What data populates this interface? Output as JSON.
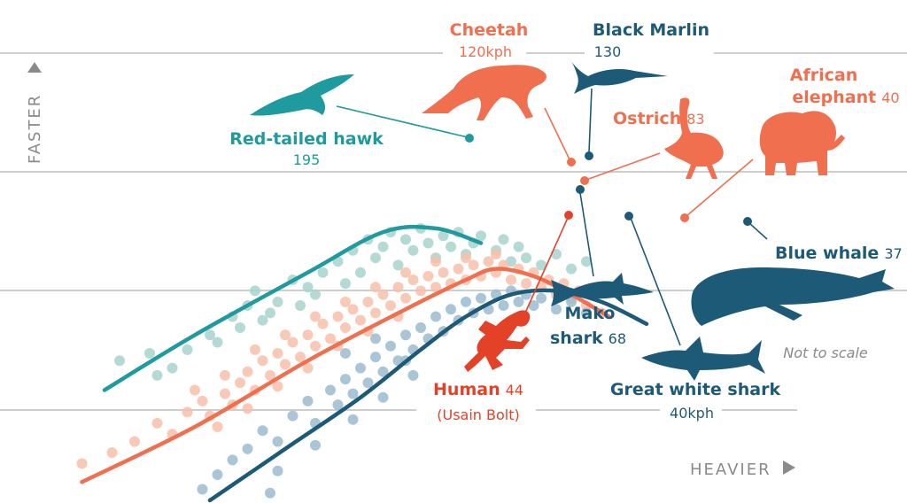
{
  "colors": {
    "birds": "#1f9a9e",
    "land_mammals": "#ef6f4f",
    "land_mammals_light": "#f8bfaa",
    "sea": "#1d5a78",
    "sea_light": "#9bbccf",
    "birds_light": "#a8d3cf",
    "human": "#e34228",
    "gridline": "#bdbdbd",
    "axis_text": "#8a8a8a"
  },
  "axes": {
    "y_label": "FASTER",
    "x_label": "HEAVIER",
    "y_arrow_icon": "triangle-up-icon",
    "x_arrow_icon": "triangle-right-icon"
  },
  "footnote": "Not to scale",
  "chart_data": {
    "type": "scatter",
    "series": [
      {
        "group": "birds",
        "curve": [
          [
            0.08,
            0.7
          ],
          [
            0.2,
            0.55
          ],
          [
            0.35,
            0.38
          ],
          [
            0.45,
            0.27
          ],
          [
            0.52,
            0.26
          ],
          [
            0.58,
            0.3
          ]
        ],
        "points": [
          [
            0.1,
            0.62
          ],
          [
            0.14,
            0.6
          ],
          [
            0.15,
            0.66
          ],
          [
            0.17,
            0.64
          ],
          [
            0.19,
            0.59
          ],
          [
            0.22,
            0.55
          ],
          [
            0.25,
            0.5
          ],
          [
            0.27,
            0.47
          ],
          [
            0.28,
            0.43
          ],
          [
            0.31,
            0.46
          ],
          [
            0.33,
            0.4
          ],
          [
            0.35,
            0.42
          ],
          [
            0.37,
            0.38
          ],
          [
            0.39,
            0.35
          ],
          [
            0.4,
            0.41
          ],
          [
            0.41,
            0.32
          ],
          [
            0.42,
            0.38
          ],
          [
            0.43,
            0.29
          ],
          [
            0.44,
            0.34
          ],
          [
            0.45,
            0.31
          ],
          [
            0.46,
            0.27
          ],
          [
            0.47,
            0.36
          ],
          [
            0.48,
            0.29
          ],
          [
            0.49,
            0.32
          ],
          [
            0.5,
            0.26
          ],
          [
            0.51,
            0.3
          ],
          [
            0.52,
            0.34
          ],
          [
            0.53,
            0.28
          ],
          [
            0.54,
            0.31
          ],
          [
            0.55,
            0.27
          ],
          [
            0.56,
            0.33
          ],
          [
            0.57,
            0.3
          ],
          [
            0.58,
            0.28
          ],
          [
            0.6,
            0.32
          ],
          [
            0.61,
            0.29
          ],
          [
            0.62,
            0.35
          ],
          [
            0.63,
            0.31
          ],
          [
            0.64,
            0.34
          ],
          [
            0.66,
            0.36
          ],
          [
            0.68,
            0.33
          ],
          [
            0.7,
            0.37
          ],
          [
            0.72,
            0.35
          ],
          [
            0.26,
            0.53
          ],
          [
            0.3,
            0.49
          ],
          [
            0.36,
            0.44
          ],
          [
            0.23,
            0.57
          ],
          [
            0.29,
            0.51
          ],
          [
            0.34,
            0.47
          ]
        ]
      },
      {
        "group": "land_mammals",
        "curve": [
          [
            0.05,
            0.95
          ],
          [
            0.2,
            0.8
          ],
          [
            0.35,
            0.62
          ],
          [
            0.48,
            0.48
          ],
          [
            0.56,
            0.4
          ],
          [
            0.6,
            0.37
          ],
          [
            0.65,
            0.39
          ],
          [
            0.7,
            0.44
          ],
          [
            0.75,
            0.5
          ]
        ],
        "points": [
          [
            0.05,
            0.9
          ],
          [
            0.09,
            0.87
          ],
          [
            0.12,
            0.84
          ],
          [
            0.15,
            0.79
          ],
          [
            0.17,
            0.82
          ],
          [
            0.19,
            0.76
          ],
          [
            0.21,
            0.73
          ],
          [
            0.22,
            0.77
          ],
          [
            0.24,
            0.71
          ],
          [
            0.25,
            0.74
          ],
          [
            0.26,
            0.68
          ],
          [
            0.27,
            0.65
          ],
          [
            0.28,
            0.7
          ],
          [
            0.29,
            0.62
          ],
          [
            0.3,
            0.66
          ],
          [
            0.31,
            0.6
          ],
          [
            0.32,
            0.63
          ],
          [
            0.33,
            0.57
          ],
          [
            0.34,
            0.61
          ],
          [
            0.35,
            0.55
          ],
          [
            0.36,
            0.58
          ],
          [
            0.37,
            0.52
          ],
          [
            0.38,
            0.56
          ],
          [
            0.39,
            0.5
          ],
          [
            0.4,
            0.53
          ],
          [
            0.41,
            0.48
          ],
          [
            0.42,
            0.51
          ],
          [
            0.43,
            0.46
          ],
          [
            0.44,
            0.49
          ],
          [
            0.45,
            0.44
          ],
          [
            0.46,
            0.47
          ],
          [
            0.47,
            0.42
          ],
          [
            0.48,
            0.45
          ],
          [
            0.49,
            0.4
          ],
          [
            0.5,
            0.43
          ],
          [
            0.51,
            0.39
          ],
          [
            0.52,
            0.42
          ],
          [
            0.53,
            0.38
          ],
          [
            0.54,
            0.41
          ],
          [
            0.55,
            0.37
          ],
          [
            0.56,
            0.4
          ],
          [
            0.57,
            0.36
          ],
          [
            0.58,
            0.39
          ],
          [
            0.59,
            0.35
          ],
          [
            0.6,
            0.38
          ],
          [
            0.61,
            0.36
          ],
          [
            0.62,
            0.4
          ],
          [
            0.63,
            0.37
          ],
          [
            0.64,
            0.41
          ],
          [
            0.65,
            0.38
          ],
          [
            0.66,
            0.42
          ],
          [
            0.67,
            0.4
          ],
          [
            0.68,
            0.44
          ],
          [
            0.69,
            0.41
          ],
          [
            0.7,
            0.45
          ],
          [
            0.71,
            0.43
          ],
          [
            0.72,
            0.47
          ],
          [
            0.73,
            0.44
          ],
          [
            0.74,
            0.49
          ],
          [
            0.23,
            0.8
          ],
          [
            0.27,
            0.75
          ],
          [
            0.31,
            0.69
          ],
          [
            0.35,
            0.64
          ],
          [
            0.39,
            0.58
          ],
          [
            0.43,
            0.54
          ],
          [
            0.47,
            0.5
          ],
          [
            0.2,
            0.7
          ],
          [
            0.24,
            0.66
          ],
          [
            0.28,
            0.59
          ],
          [
            0.32,
            0.55
          ],
          [
            0.36,
            0.5
          ],
          [
            0.4,
            0.46
          ],
          [
            0.44,
            0.42
          ],
          [
            0.48,
            0.38
          ],
          [
            0.52,
            0.35
          ],
          [
            0.56,
            0.34
          ],
          [
            0.6,
            0.33
          ]
        ]
      },
      {
        "group": "sea",
        "curve": [
          [
            0.22,
            1.0
          ],
          [
            0.32,
            0.86
          ],
          [
            0.42,
            0.72
          ],
          [
            0.5,
            0.59
          ],
          [
            0.56,
            0.5
          ],
          [
            0.62,
            0.44
          ],
          [
            0.68,
            0.43
          ],
          [
            0.74,
            0.46
          ],
          [
            0.8,
            0.52
          ]
        ],
        "points": [
          [
            0.21,
            0.97
          ],
          [
            0.23,
            0.93
          ],
          [
            0.25,
            0.89
          ],
          [
            0.27,
            0.86
          ],
          [
            0.29,
            0.81
          ],
          [
            0.31,
            0.84
          ],
          [
            0.33,
            0.77
          ],
          [
            0.35,
            0.73
          ],
          [
            0.36,
            0.79
          ],
          [
            0.38,
            0.7
          ],
          [
            0.39,
            0.74
          ],
          [
            0.4,
            0.67
          ],
          [
            0.41,
            0.71
          ],
          [
            0.42,
            0.64
          ],
          [
            0.43,
            0.68
          ],
          [
            0.44,
            0.61
          ],
          [
            0.45,
            0.65
          ],
          [
            0.46,
            0.58
          ],
          [
            0.47,
            0.62
          ],
          [
            0.48,
            0.55
          ],
          [
            0.49,
            0.59
          ],
          [
            0.5,
            0.53
          ],
          [
            0.51,
            0.56
          ],
          [
            0.52,
            0.5
          ],
          [
            0.53,
            0.54
          ],
          [
            0.54,
            0.48
          ],
          [
            0.55,
            0.51
          ],
          [
            0.56,
            0.46
          ],
          [
            0.57,
            0.49
          ],
          [
            0.58,
            0.45
          ],
          [
            0.59,
            0.48
          ],
          [
            0.6,
            0.44
          ],
          [
            0.61,
            0.47
          ],
          [
            0.62,
            0.43
          ],
          [
            0.63,
            0.46
          ],
          [
            0.64,
            0.44
          ],
          [
            0.65,
            0.47
          ],
          [
            0.66,
            0.45
          ],
          [
            0.68,
            0.48
          ],
          [
            0.7,
            0.46
          ],
          [
            0.72,
            0.49
          ],
          [
            0.31,
            0.92
          ],
          [
            0.36,
            0.85
          ],
          [
            0.41,
            0.78
          ],
          [
            0.45,
            0.72
          ],
          [
            0.49,
            0.66
          ],
          [
            0.3,
            0.98
          ],
          [
            0.4,
            0.6
          ],
          [
            0.44,
            0.56
          ],
          [
            0.48,
            0.62
          ]
        ]
      }
    ],
    "annotations": [
      {
        "id": "cheetah",
        "name": "Cheetah",
        "value": "120kph",
        "group": "land_mammals",
        "layout": "stacked"
      },
      {
        "id": "black_marlin",
        "name": "Black Marlin",
        "value": "130",
        "group": "sea",
        "layout": "stacked"
      },
      {
        "id": "african_elephant",
        "name_line1": "African",
        "name_line2": "elephant",
        "value": "40",
        "group": "land_mammals",
        "layout": "two-line"
      },
      {
        "id": "ostrich",
        "name": "Ostrich",
        "value": "83",
        "group": "land_mammals",
        "layout": "inline"
      },
      {
        "id": "red_tailed_hawk",
        "name": "Red-tailed hawk",
        "value": "195",
        "group": "birds",
        "layout": "stacked"
      },
      {
        "id": "blue_whale",
        "name": "Blue whale",
        "value": "37",
        "group": "sea",
        "layout": "inline"
      },
      {
        "id": "mako_shark",
        "name_line1": "Mako",
        "name_line2": "shark",
        "value": "68",
        "group": "sea",
        "layout": "two-line"
      },
      {
        "id": "human",
        "name": "Human",
        "value": "44",
        "subtitle": "(Usain Bolt)",
        "group": "human",
        "layout": "inline"
      },
      {
        "id": "great_white_shark",
        "name": "Great white shark",
        "value": "40kph",
        "group": "sea",
        "layout": "stacked"
      }
    ],
    "icons": [
      "hawk-icon",
      "cheetah-icon",
      "marlin-icon",
      "ostrich-icon",
      "elephant-icon",
      "mako-shark-icon",
      "great-white-shark-icon",
      "blue-whale-icon",
      "sprinter-icon"
    ],
    "grid": true,
    "gridline_count": 4
  }
}
